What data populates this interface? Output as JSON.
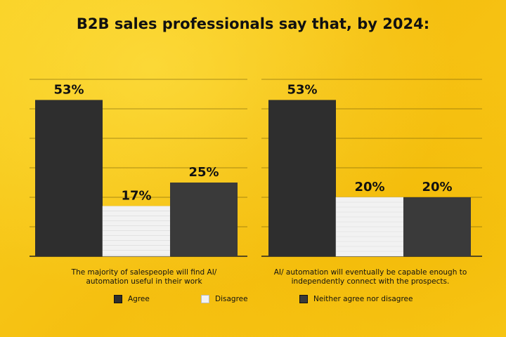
{
  "chart_data": {
    "type": "bar",
    "title": "B2B sales professionals say that, by 2024:",
    "ylim": [
      0,
      60
    ],
    "grid": true,
    "legend_placement": "bottom",
    "series": [
      {
        "name": "Agree",
        "color": "#2e2e2e",
        "values": [
          53,
          53
        ],
        "labels": [
          "53%",
          "53%"
        ]
      },
      {
        "name": "Disagree",
        "color": "#f2f2f2",
        "values": [
          17,
          20
        ],
        "labels": [
          "17%",
          "20%"
        ]
      },
      {
        "name": "Neither agree nor disagree",
        "color": "#3a3a3a",
        "values": [
          25,
          20
        ],
        "labels": [
          "25%",
          "20%"
        ]
      }
    ],
    "categories": [
      {
        "line1": "The majority of salespeople will find AI/",
        "line2": "automation useful in their work"
      },
      {
        "line1": "AI/ automation will eventually be capable enough  to",
        "line2": "independently connect with the prospects."
      }
    ]
  }
}
